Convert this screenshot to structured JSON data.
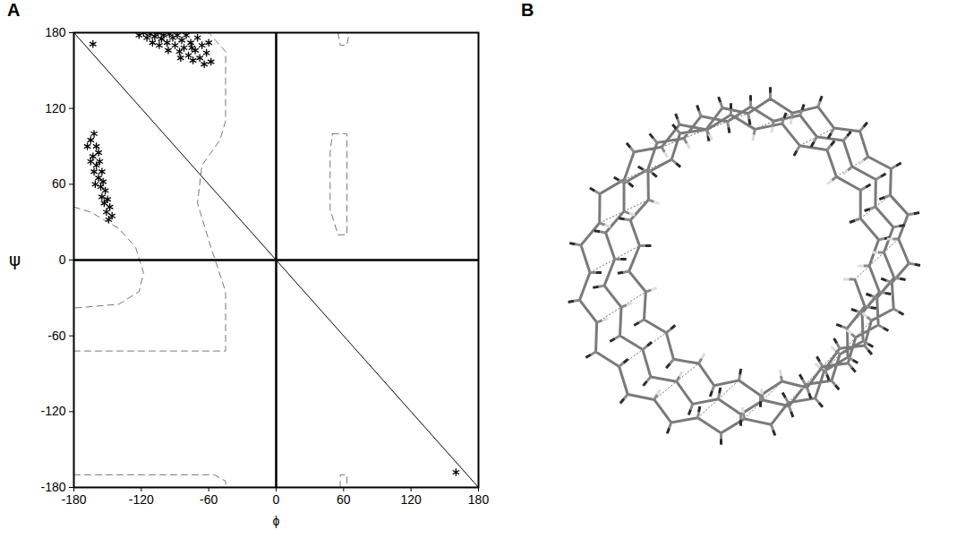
{
  "panel_labels": [
    "A",
    "B"
  ],
  "chart_data": {
    "type": "scatter",
    "x_label": "ϕ",
    "y_label": "ψ",
    "xlim": [
      -180,
      180
    ],
    "ylim": [
      -180,
      180
    ],
    "xticks": [
      -180,
      -120,
      -60,
      0,
      60,
      120,
      180
    ],
    "yticks": [
      -180,
      -120,
      -60,
      0,
      60,
      120,
      180
    ],
    "series": [
      {
        "type": "line",
        "line_style": "dashed",
        "color": "#777777",
        "x": [
          -180,
          -45,
          -45,
          -58,
          -70,
          -66,
          -50,
          -45,
          -45,
          -55,
          -60,
          null,
          -180,
          -165,
          -140,
          -125,
          -118,
          -122,
          -140,
          -180,
          null,
          -180,
          -55,
          -45,
          -45,
          null,
          50,
          63,
          63,
          55,
          48,
          48,
          50,
          null,
          55,
          57,
          63,
          65,
          null,
          57,
          57,
          63,
          63
        ],
        "y": [
          -72,
          -72,
          -25,
          10,
          45,
          75,
          95,
          110,
          165,
          175,
          180,
          null,
          42,
          38,
          25,
          10,
          -10,
          -25,
          -35,
          -38,
          null,
          -170,
          -170,
          -175,
          -180,
          null,
          100,
          100,
          20,
          20,
          40,
          85,
          100,
          null,
          180,
          170,
          170,
          180,
          null,
          -180,
          -170,
          -170,
          -180
        ]
      },
      {
        "type": "line",
        "line_style": "solid",
        "color": "#000000",
        "x": [
          -180,
          180
        ],
        "y": [
          180,
          -180
        ]
      },
      {
        "type": "line",
        "line_style": "thick",
        "color": "#000000",
        "x": [
          0,
          0
        ],
        "y": [
          -180,
          180
        ]
      },
      {
        "type": "line",
        "line_style": "thick",
        "color": "#000000",
        "x": [
          -180,
          180
        ],
        "y": [
          0,
          0
        ]
      },
      {
        "type": "scatter",
        "marker": "asterisk",
        "color": "#000000",
        "x": [
          -122,
          -118,
          -115,
          -112,
          -108,
          -105,
          -102,
          -100,
          -97,
          -95,
          -92,
          -90,
          -88,
          -86,
          -84,
          -82,
          -80,
          -78,
          -76,
          -74,
          -72,
          -70,
          -68,
          -66,
          -64,
          -62,
          -60,
          -58,
          -110,
          -96,
          -104,
          -85,
          -75,
          -165,
          -162,
          -160,
          -163,
          -158,
          -160,
          -157,
          -162,
          -155,
          -158,
          -154,
          -156,
          -152,
          -155,
          -150,
          -153,
          -148,
          -151,
          -146,
          -149,
          -165,
          -161,
          -168,
          -163,
          160
        ],
        "y": [
          178,
          180,
          176,
          179,
          177,
          180,
          175,
          178,
          172,
          179,
          176,
          170,
          178,
          165,
          174,
          168,
          178,
          162,
          172,
          158,
          166,
          176,
          160,
          170,
          155,
          164,
          172,
          157,
          172,
          166,
          170,
          160,
          168,
          95,
          100,
          90,
          82,
          85,
          75,
          78,
          70,
          70,
          65,
          62,
          58,
          55,
          50,
          48,
          45,
          42,
          38,
          35,
          32,
          78,
          60,
          90,
          171,
          -168
        ]
      }
    ]
  }
}
